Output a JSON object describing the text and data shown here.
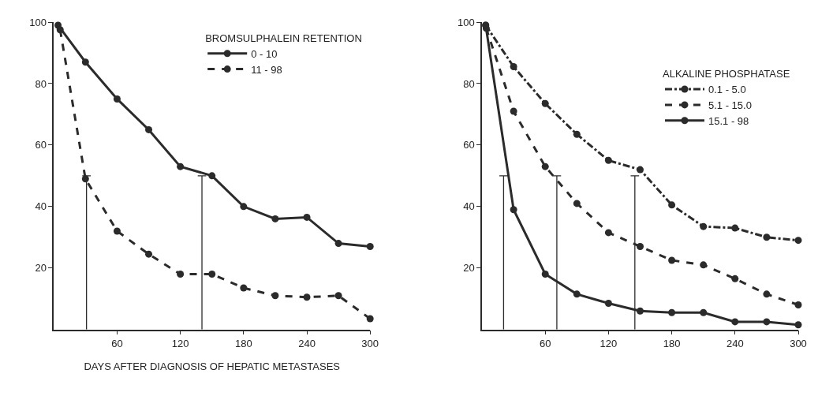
{
  "chart_data": [
    {
      "type": "line",
      "xlabel": "DAYS AFTER DIAGNOSIS OF HEPATIC METASTASES",
      "legend_title": "BROMSULPHALEIN RETENTION",
      "legend": "top right",
      "marker": "circle",
      "xlim": [
        0,
        300
      ],
      "xticks": [
        60,
        120,
        180,
        240,
        300
      ],
      "ylim": [
        0,
        100
      ],
      "yticks": [
        20,
        40,
        60,
        80,
        100
      ],
      "series": [
        {
          "name": "0 - 10",
          "color": "#2b2b2b",
          "line_style": "solid",
          "x": [
            4,
            30,
            60,
            90,
            120,
            150,
            180,
            210,
            240,
            270,
            300
          ],
          "values": [
            99,
            87,
            75,
            65,
            53,
            50,
            40,
            36,
            36.5,
            28,
            27
          ]
        },
        {
          "name": "11 - 98",
          "color": "#2b2b2b",
          "line_style": "dashed",
          "x": [
            6,
            30,
            60,
            90,
            120,
            150,
            180,
            210,
            240,
            270,
            300
          ],
          "values": [
            97.5,
            49,
            32,
            24.5,
            18,
            18,
            13.5,
            11,
            10.5,
            11,
            3.5
          ]
        },
        {
          "color": "#2b2b2b",
          "line_style": "solid",
          "marker": "none",
          "x": [
            31,
            31,
            27,
            35
          ],
          "values": [
            0,
            50,
            50,
            50
          ]
        },
        {
          "color": "#2b2b2b",
          "line_style": "solid",
          "marker": "none",
          "x": [
            140.5,
            140.5,
            136.5,
            144.5
          ],
          "values": [
            0,
            50,
            50,
            50
          ]
        }
      ]
    },
    {
      "type": "line",
      "legend_title": "ALKALINE PHOSPHATASE",
      "legend": "top right",
      "marker": "circle",
      "xlim": [
        0,
        300
      ],
      "xticks": [
        60,
        120,
        180,
        240,
        300
      ],
      "ylim": [
        0,
        100
      ],
      "yticks": [
        20,
        40,
        60,
        80,
        100
      ],
      "series": [
        {
          "name": "0.1 - 5.0",
          "color": "#2b2b2b",
          "line_style": "dashdot",
          "x": [
            3.5,
            30,
            60,
            90,
            120,
            150,
            180,
            210,
            240,
            270,
            300
          ],
          "values": [
            99,
            85.5,
            73.5,
            63.5,
            55,
            52,
            40.5,
            33.5,
            33,
            30,
            29
          ]
        },
        {
          "name": "5.1 - 15.0",
          "color": "#2b2b2b",
          "line_style": "dashed",
          "x": [
            4,
            30,
            60,
            90,
            120,
            150,
            180,
            210,
            240,
            270,
            300
          ],
          "values": [
            98,
            71,
            53,
            41,
            31.5,
            27,
            22.5,
            21,
            16.5,
            11.5,
            8
          ]
        },
        {
          "name": "15.1 - 98",
          "color": "#2b2b2b",
          "line_style": "solid",
          "x": [
            3.5,
            30,
            60,
            90,
            120,
            150,
            180,
            210,
            240,
            270,
            300
          ],
          "values": [
            99,
            39,
            18,
            11.5,
            8.5,
            6,
            5.5,
            5.5,
            2.5,
            2.5,
            1.5
          ]
        },
        {
          "color": "#2b2b2b",
          "line_style": "solid",
          "marker": "none",
          "x": [
            20.5,
            20.5,
            16.5,
            24.5
          ],
          "values": [
            0,
            50,
            50,
            50
          ]
        },
        {
          "color": "#2b2b2b",
          "line_style": "solid",
          "marker": "none",
          "x": [
            71,
            71,
            67,
            75
          ],
          "values": [
            0,
            50,
            50,
            50
          ]
        },
        {
          "color": "#2b2b2b",
          "line_style": "solid",
          "marker": "none",
          "x": [
            145,
            145,
            141,
            149
          ],
          "values": [
            0,
            50,
            50,
            50
          ]
        }
      ]
    }
  ]
}
